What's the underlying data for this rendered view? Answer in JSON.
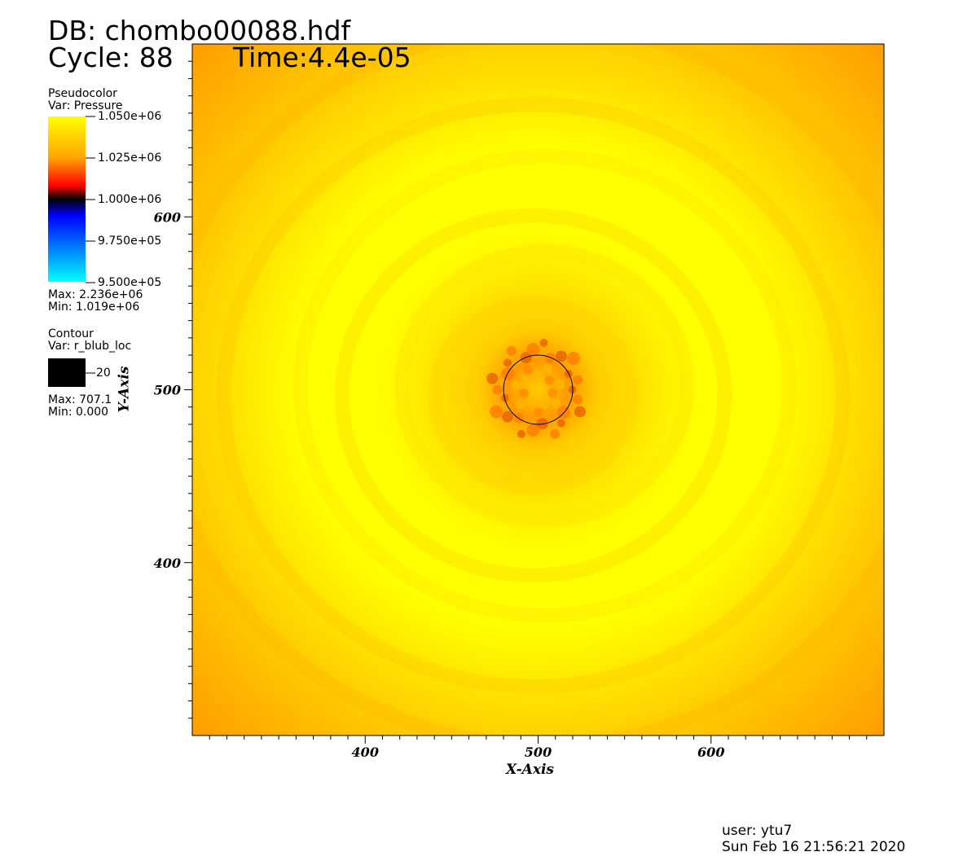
{
  "header": {
    "db": "DB: chombo00088.hdf",
    "cycle": "Cycle: 88",
    "time": "Time:4.4e-05"
  },
  "legend": {
    "pseudocolor": {
      "title": "Pseudocolor",
      "var": "Var: Pressure",
      "ticks": [
        "1.050e+06",
        "1.025e+06",
        "1.000e+06",
        "9.750e+05",
        "9.500e+05"
      ],
      "max": "Max: 2.236e+06",
      "min": "Min: 1.019e+06",
      "colors": [
        "#ffff00",
        "#ffa500",
        "#ff0000",
        "#000000",
        "#0000ff",
        "#00ffff"
      ]
    },
    "contour": {
      "title": "Contour",
      "var": "Var: r_blub_loc",
      "level": "20",
      "max": "Max: 707.1",
      "min": "Min: 0.000",
      "color": "#000000"
    }
  },
  "footer": {
    "user": "user: ytu7",
    "date": "Sun Feb 16 21:56:21 2020"
  },
  "chart_data": {
    "type": "heatmap",
    "title": "",
    "xlabel": "X-Axis",
    "ylabel": "Y-Axis",
    "xlim": [
      300,
      700
    ],
    "ylim": [
      300,
      700
    ],
    "x_ticks": [
      400,
      500,
      600
    ],
    "y_ticks": [
      400,
      500,
      600
    ],
    "contour": {
      "variable": "r_blub_loc",
      "level": 20,
      "center": [
        500,
        500
      ],
      "radius": 20
    },
    "field_description_colors": {
      "low": "#ff9900",
      "mid": "#ffcc00",
      "high": "#ffff00"
    }
  }
}
